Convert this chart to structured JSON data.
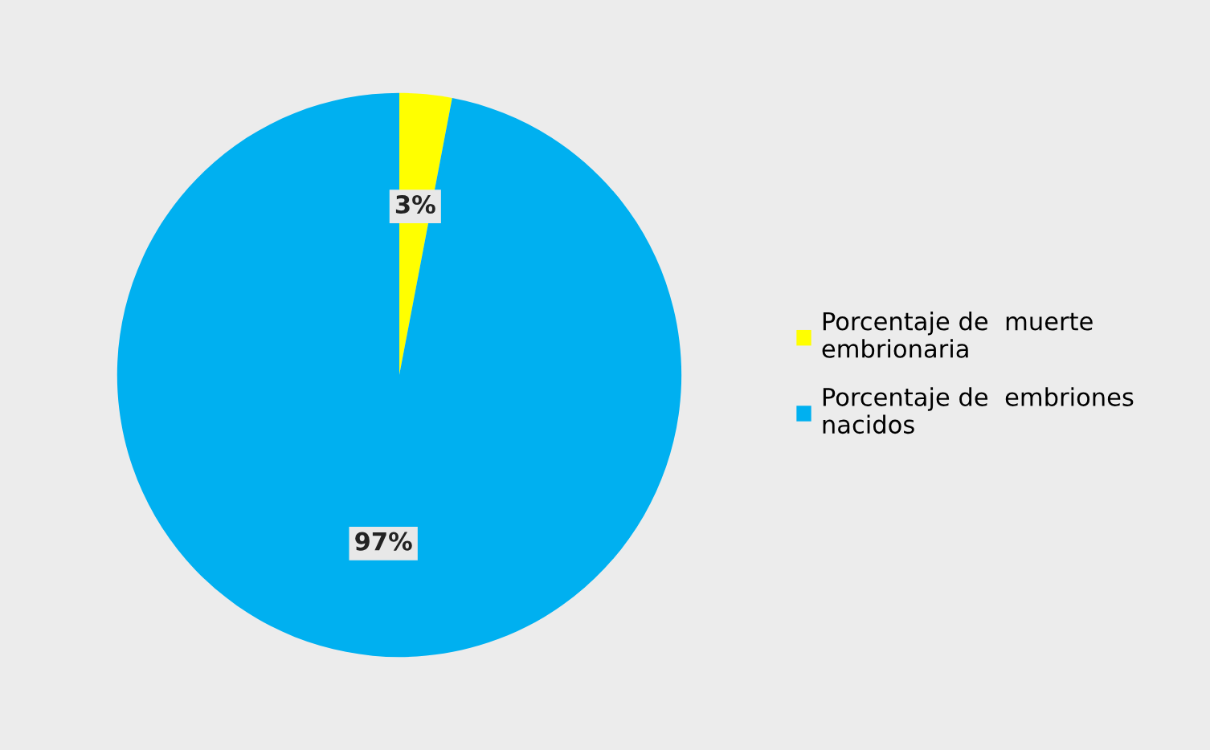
{
  "chart_data": {
    "type": "pie",
    "categories": [
      "Porcentaje de  muerte embrionaria",
      "Porcentaje de  embriones nacidos"
    ],
    "values": [
      3,
      97
    ],
    "colors": [
      "#ffff00",
      "#00b0f0"
    ],
    "value_labels": [
      "3%",
      "97%"
    ],
    "legend": "right"
  }
}
